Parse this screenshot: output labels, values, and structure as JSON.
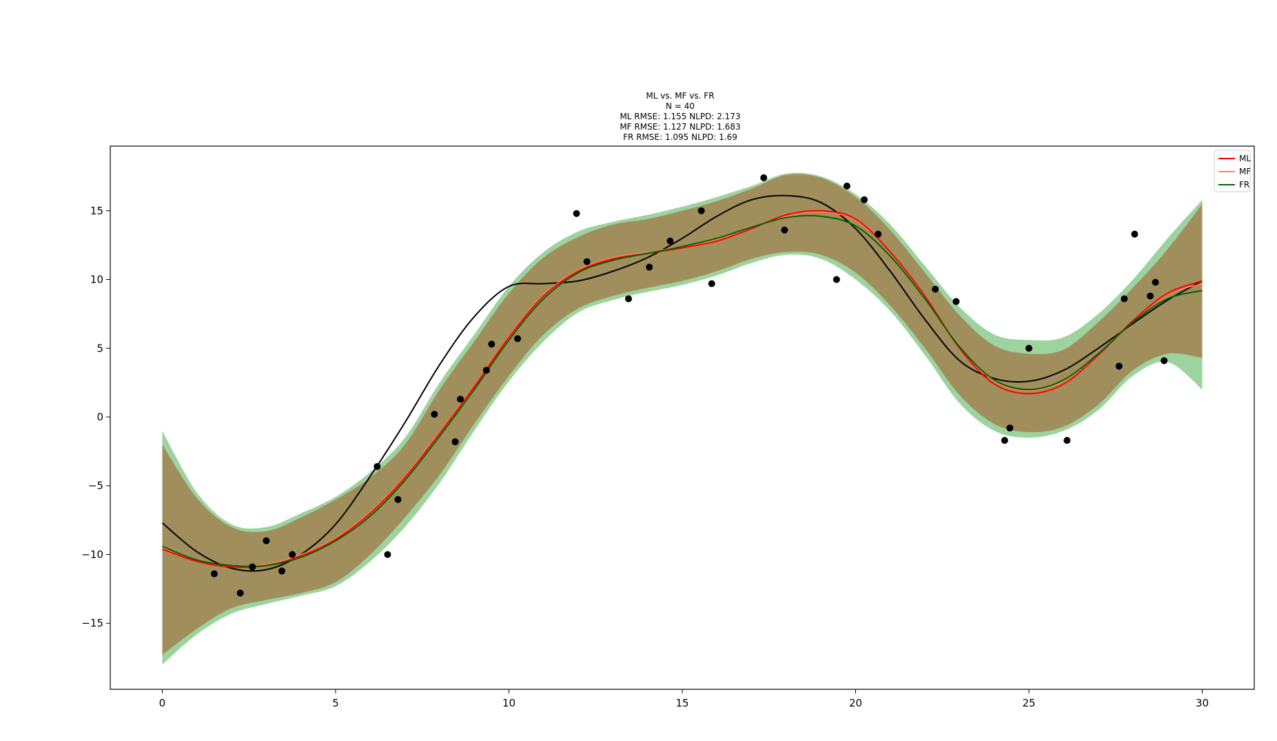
{
  "chart_data": {
    "type": "line",
    "title": [
      "ML vs. MF vs. FR",
      "N = 40",
      "ML  RMSE: 1.155  NLPD: 2.173",
      "MF  RMSE: 1.127 NLPD: 1.683",
      "FR  RMSE: 1.095 NLPD: 1.69"
    ],
    "xlabel": "",
    "ylabel": "",
    "xlim": [
      -1.5,
      31.5
    ],
    "ylim": [
      -19.8,
      19.7
    ],
    "xticks": [
      0,
      5,
      10,
      15,
      20,
      25,
      30
    ],
    "yticks": [
      -15,
      -10,
      -5,
      0,
      5,
      10,
      15
    ],
    "xtick_labels": [
      "0",
      "5",
      "10",
      "15",
      "20",
      "25",
      "30"
    ],
    "ytick_labels": [
      "−15",
      "−10",
      "−5",
      "0",
      "5",
      "10",
      "15"
    ],
    "grid": false,
    "legend_position": "top-right",
    "legend": [
      "ML",
      "MF",
      "FR"
    ],
    "colors": {
      "ML": "#ff0000",
      "MF": "#ff7f50",
      "FR": "#006400",
      "truth": "#000000",
      "points": "#000000",
      "band_brown": "#a08a5a",
      "band_green": "#4caf50"
    },
    "bands": [
      {
        "name": "FR band",
        "x": [
          0,
          1,
          2,
          3,
          4,
          5,
          6,
          7,
          8,
          9,
          10,
          11,
          12,
          13,
          14,
          15,
          16,
          17,
          18,
          19,
          20,
          21,
          22,
          23,
          24,
          25,
          26,
          27,
          28,
          29,
          30
        ],
        "upper": [
          -1.0,
          -5.5,
          -7.8,
          -8.0,
          -7.0,
          -5.8,
          -4.0,
          -1.5,
          2.5,
          6.0,
          9.5,
          12.0,
          13.5,
          14.2,
          14.7,
          15.3,
          16.0,
          16.8,
          17.7,
          17.5,
          16.2,
          14.0,
          11.0,
          8.0,
          6.0,
          5.6,
          5.8,
          7.5,
          10.0,
          13.0,
          15.8
        ],
        "lower": [
          -18.0,
          -15.8,
          -14.3,
          -13.6,
          -13.0,
          -12.3,
          -10.5,
          -8.0,
          -4.8,
          -1.0,
          2.6,
          5.5,
          7.6,
          8.5,
          9.1,
          9.6,
          10.3,
          11.2,
          11.8,
          11.5,
          10.0,
          7.7,
          4.5,
          1.0,
          -1.0,
          -1.5,
          -1.0,
          0.5,
          3.0,
          4.0,
          2.0
        ]
      },
      {
        "name": "ML / MF band",
        "x": [
          0,
          1,
          2,
          3,
          4,
          5,
          6,
          7,
          8,
          9,
          10,
          11,
          12,
          13,
          14,
          15,
          16,
          17,
          18,
          19,
          20,
          21,
          22,
          23,
          24,
          25,
          26,
          27,
          28,
          29,
          30
        ],
        "upper": [
          -2.0,
          -5.9,
          -8.0,
          -8.3,
          -7.3,
          -6.0,
          -4.4,
          -2.0,
          2.0,
          5.5,
          9.0,
          11.6,
          13.1,
          14.0,
          14.4,
          15.0,
          15.7,
          16.6,
          17.6,
          17.4,
          16.0,
          13.6,
          10.5,
          7.4,
          5.2,
          4.6,
          4.9,
          6.9,
          9.4,
          12.2,
          15.5
        ],
        "lower": [
          -17.3,
          -15.4,
          -13.9,
          -13.3,
          -12.8,
          -12.0,
          -10.0,
          -7.3,
          -4.2,
          -0.5,
          3.0,
          6.0,
          7.9,
          8.8,
          9.4,
          9.9,
          10.6,
          11.5,
          12.0,
          11.8,
          10.5,
          8.1,
          5.0,
          1.6,
          -0.5,
          -1.1,
          -0.7,
          0.9,
          3.4,
          4.6,
          4.3
        ]
      }
    ],
    "x": [
      0,
      1,
      2,
      3,
      4,
      5,
      6,
      7,
      8,
      9,
      10,
      11,
      12,
      13,
      14,
      15,
      16,
      17,
      18,
      19,
      20,
      21,
      22,
      23,
      24,
      25,
      26,
      27,
      28,
      29,
      30
    ],
    "series": [
      {
        "name": "ML",
        "values": [
          -9.6,
          -10.5,
          -10.9,
          -10.8,
          -10.1,
          -8.9,
          -7.0,
          -4.4,
          -1.2,
          2.2,
          5.8,
          8.8,
          10.6,
          11.5,
          11.9,
          12.3,
          12.8,
          13.7,
          14.7,
          15.0,
          14.4,
          12.0,
          8.8,
          5.0,
          2.4,
          1.7,
          2.4,
          4.5,
          7.0,
          9.0,
          9.9
        ]
      },
      {
        "name": "MF",
        "values": [
          -9.5,
          -10.4,
          -10.8,
          -10.7,
          -10.0,
          -8.8,
          -6.9,
          -4.3,
          -1.1,
          2.3,
          5.9,
          8.9,
          10.7,
          11.6,
          12.0,
          12.4,
          12.9,
          13.8,
          14.6,
          14.9,
          14.3,
          12.0,
          8.8,
          5.1,
          2.6,
          1.9,
          2.6,
          4.6,
          7.0,
          8.9,
          9.7
        ]
      },
      {
        "name": "FR",
        "values": [
          -9.4,
          -10.4,
          -10.8,
          -10.8,
          -10.2,
          -9.0,
          -7.2,
          -4.6,
          -1.4,
          2.0,
          5.6,
          8.6,
          10.5,
          11.4,
          11.9,
          12.4,
          13.0,
          13.8,
          14.5,
          14.6,
          13.9,
          11.7,
          8.6,
          5.1,
          2.7,
          2.0,
          2.7,
          4.6,
          6.9,
          8.6,
          9.2
        ]
      },
      {
        "name": "",
        "values": [
          -7.7,
          -9.8,
          -11.0,
          -11.1,
          -10.0,
          -7.8,
          -4.3,
          -0.4,
          3.8,
          7.3,
          9.5,
          9.7,
          9.9,
          10.6,
          11.6,
          13.0,
          14.6,
          15.8,
          16.1,
          15.6,
          13.7,
          10.6,
          7.1,
          4.1,
          2.8,
          2.6,
          3.4,
          5.0,
          6.8,
          8.5,
          9.9
        ]
      }
    ],
    "points": {
      "x": [
        1.5,
        2.25,
        2.6,
        3.0,
        3.45,
        3.75,
        6.2,
        6.5,
        6.8,
        7.85,
        8.45,
        8.6,
        9.35,
        9.5,
        10.25,
        11.95,
        12.25,
        13.45,
        14.05,
        14.65,
        15.55,
        15.85,
        17.35,
        17.95,
        19.45,
        19.75,
        20.25,
        20.65,
        22.3,
        22.9,
        24.3,
        24.45,
        25.0,
        26.1,
        27.6,
        27.75,
        28.05,
        28.5,
        28.65,
        28.9
      ],
      "y": [
        -11.4,
        -12.8,
        -10.9,
        -9.0,
        -11.2,
        -10.0,
        -3.6,
        -10.0,
        -6.0,
        0.2,
        -1.8,
        1.3,
        3.4,
        5.3,
        5.7,
        14.8,
        11.3,
        8.6,
        10.9,
        12.8,
        15.0,
        9.7,
        17.4,
        13.6,
        10.0,
        16.8,
        15.8,
        13.3,
        9.3,
        8.4,
        -1.7,
        -0.8,
        5.0,
        -1.7,
        3.7,
        8.6,
        13.3,
        8.8,
        9.8,
        4.1
      ]
    }
  }
}
